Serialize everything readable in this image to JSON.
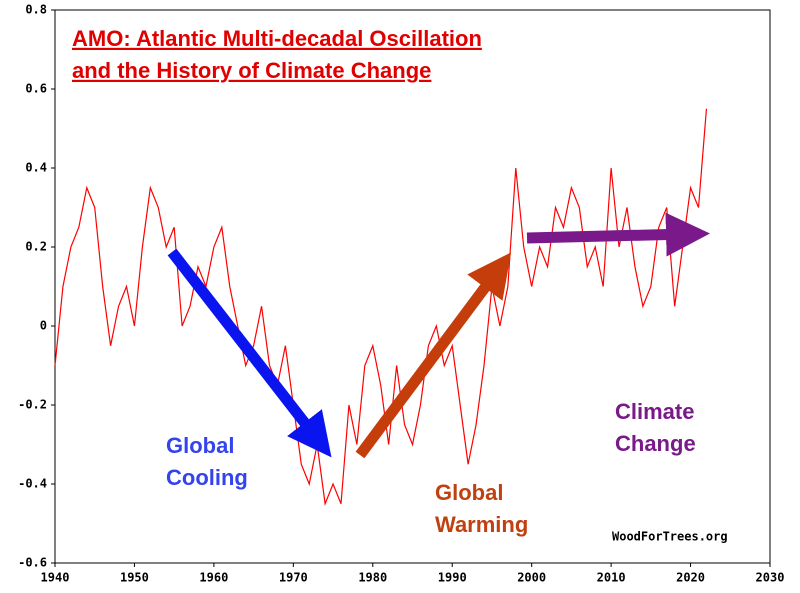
{
  "chart_data": {
    "type": "line",
    "title": [
      "AMO: Atlantic Multi-decadal Oscillation",
      "and the History of Climate Change"
    ],
    "x": [
      1940,
      1941,
      1942,
      1943,
      1944,
      1945,
      1946,
      1947,
      1948,
      1949,
      1950,
      1951,
      1952,
      1953,
      1954,
      1955,
      1956,
      1957,
      1958,
      1959,
      1960,
      1961,
      1962,
      1963,
      1964,
      1965,
      1966,
      1967,
      1968,
      1969,
      1970,
      1971,
      1972,
      1973,
      1974,
      1975,
      1976,
      1977,
      1978,
      1979,
      1980,
      1981,
      1982,
      1983,
      1984,
      1985,
      1986,
      1987,
      1988,
      1989,
      1990,
      1991,
      1992,
      1993,
      1994,
      1995,
      1996,
      1997,
      1998,
      1999,
      2000,
      2001,
      2002,
      2003,
      2004,
      2005,
      2006,
      2007,
      2008,
      2009,
      2010,
      2011,
      2012,
      2013,
      2014,
      2015,
      2016,
      2017,
      2018,
      2019,
      2020,
      2021,
      2022
    ],
    "series": [
      {
        "color": "#ff0000",
        "values": [
          -0.1,
          0.1,
          0.2,
          0.25,
          0.35,
          0.3,
          0.1,
          -0.05,
          0.05,
          0.1,
          0.0,
          0.2,
          0.35,
          0.3,
          0.2,
          0.25,
          0.0,
          0.05,
          0.15,
          0.1,
          0.2,
          0.25,
          0.1,
          0.0,
          -0.1,
          -0.05,
          0.05,
          -0.1,
          -0.15,
          -0.05,
          -0.2,
          -0.35,
          -0.4,
          -0.3,
          -0.45,
          -0.4,
          -0.45,
          -0.2,
          -0.3,
          -0.1,
          -0.05,
          -0.15,
          -0.3,
          -0.1,
          -0.25,
          -0.3,
          -0.2,
          -0.05,
          0.0,
          -0.1,
          -0.05,
          -0.2,
          -0.35,
          -0.25,
          -0.1,
          0.1,
          0.0,
          0.1,
          0.4,
          0.2,
          0.1,
          0.2,
          0.15,
          0.3,
          0.25,
          0.35,
          0.3,
          0.15,
          0.2,
          0.1,
          0.4,
          0.2,
          0.3,
          0.15,
          0.05,
          0.1,
          0.25,
          0.3,
          0.05,
          0.2,
          0.35,
          0.3,
          0.55
        ]
      }
    ],
    "xlim": [
      1940,
      2030
    ],
    "xticks": [
      1940,
      1950,
      1960,
      1970,
      1980,
      1990,
      2000,
      2010,
      2020,
      2030
    ],
    "ylim": [
      -0.6,
      0.8
    ],
    "yticks": [
      0.8,
      0.6,
      0.4,
      0.2,
      0,
      -0.2,
      -0.4,
      -0.6
    ],
    "annotations": [
      {
        "text": [
          "Global",
          "Cooling"
        ],
        "color": "#3344ee"
      },
      {
        "text": [
          "Global",
          "Warming"
        ],
        "color": "#c04010"
      },
      {
        "text": [
          "Climate",
          "Change"
        ],
        "color": "#7a1a8a"
      }
    ],
    "credit": "WoodForTrees.org"
  }
}
